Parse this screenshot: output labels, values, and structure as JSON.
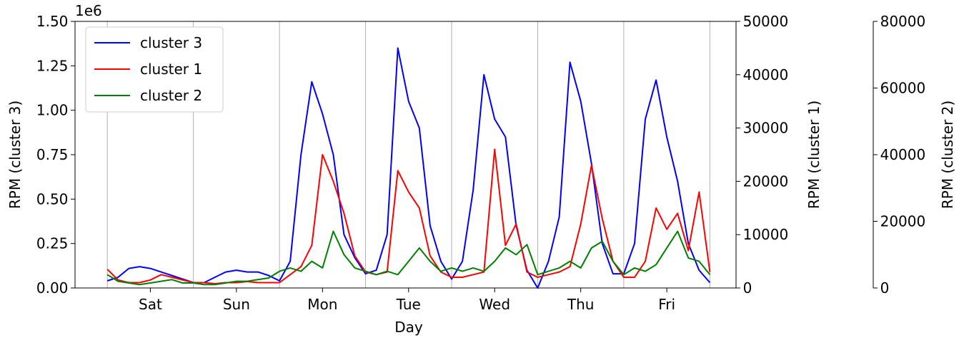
{
  "chart_data": {
    "type": "line",
    "xlabel": "Day",
    "ylabel": "RPM (cluster 3)",
    "y2label": "RPM (cluster 1)",
    "y3label": "RPM (cluster 2)",
    "y_offset_label": "1e6",
    "x": [
      0,
      3,
      6,
      9,
      12,
      15,
      18,
      21,
      24,
      27,
      30,
      33,
      36,
      39,
      42,
      45,
      48,
      51,
      54,
      57,
      60,
      63,
      66,
      69,
      72,
      75,
      78,
      81,
      84,
      87,
      90,
      93,
      96,
      99,
      102,
      105,
      108,
      111,
      114,
      117,
      120,
      123,
      126,
      129,
      132,
      135,
      138,
      141,
      144,
      147,
      150,
      153,
      156,
      159,
      162,
      165,
      168
    ],
    "xlim": [
      -9,
      175.3
    ],
    "xticks": [
      {
        "value": 12,
        "label": "Sat"
      },
      {
        "value": 36,
        "label": "Sun"
      },
      {
        "value": 60,
        "label": "Mon"
      },
      {
        "value": 84,
        "label": "Tue"
      },
      {
        "value": 108,
        "label": "Wed"
      },
      {
        "value": 132,
        "label": "Thu"
      },
      {
        "value": 156,
        "label": "Fri"
      }
    ],
    "xminorticks": [
      0,
      24,
      48,
      72,
      96,
      120,
      144,
      168
    ],
    "grid": "x",
    "ylim": [
      0,
      1.5
    ],
    "yticks": [
      {
        "value": 0,
        "label": "0.00"
      },
      0.25,
      {
        "value": 0.5,
        "label": "0.50"
      },
      0.75,
      {
        "value": 1,
        "label": "1.00"
      },
      1.25,
      {
        "value": 1.5,
        "label": "1.50"
      }
    ],
    "y2lim": [
      0,
      50000
    ],
    "y2ticks": [
      0,
      10000,
      20000,
      30000,
      40000,
      50000
    ],
    "y3lim": [
      0,
      80000
    ],
    "y3ticks": [
      0,
      20000,
      40000,
      60000,
      80000
    ],
    "legend": "upper left",
    "series": [
      {
        "name": "cluster 3",
        "color": "#0000ff",
        "axis": "y",
        "values": [
          0.04,
          0.06,
          0.11,
          0.12,
          0.11,
          0.09,
          0.07,
          0.05,
          0.03,
          0.03,
          0.06,
          0.09,
          0.1,
          0.09,
          0.09,
          0.07,
          0.04,
          0.15,
          0.75,
          1.16,
          0.98,
          0.75,
          0.3,
          0.17,
          0.08,
          0.1,
          0.3,
          1.35,
          1.05,
          0.9,
          0.35,
          0.15,
          0.05,
          0.15,
          0.55,
          1.2,
          0.95,
          0.85,
          0.35,
          0.1,
          0.0,
          0.15,
          0.4,
          1.27,
          1.05,
          0.7,
          0.25,
          0.08,
          0.08,
          0.25,
          0.95,
          1.17,
          0.85,
          0.6,
          0.25,
          0.1,
          0.03
        ]
      },
      {
        "name": "cluster 1",
        "color": "#ff0000",
        "axis": "y2",
        "values": [
          3500,
          1500,
          1000,
          1000,
          1500,
          2500,
          2000,
          1500,
          1000,
          1000,
          800,
          1000,
          1000,
          1200,
          1000,
          1000,
          1000,
          2500,
          4000,
          8000,
          25000,
          20000,
          14000,
          6000,
          3000,
          2500,
          3000,
          22000,
          18000,
          15000,
          6000,
          3000,
          2000,
          2000,
          2500,
          3000,
          26000,
          8000,
          12000,
          3000,
          2000,
          2500,
          3000,
          4000,
          12000,
          23000,
          13000,
          5000,
          2000,
          2000,
          5000,
          15000,
          11000,
          14000,
          7000,
          18000,
          3000
        ]
      },
      {
        "name": "cluster 2",
        "color": "#008000",
        "axis": "y3",
        "values": [
          4000,
          2000,
          1500,
          1000,
          1500,
          2000,
          2500,
          1500,
          1500,
          1000,
          1000,
          1500,
          2000,
          2000,
          2500,
          3000,
          5000,
          6000,
          5000,
          8000,
          6000,
          17000,
          10000,
          6000,
          5000,
          4000,
          5000,
          4000,
          8000,
          12000,
          8000,
          5000,
          6000,
          5000,
          6000,
          5000,
          8000,
          12000,
          10000,
          13000,
          4000,
          5000,
          6000,
          8000,
          6000,
          12000,
          14000,
          8000,
          4000,
          6000,
          5000,
          7000,
          12000,
          17000,
          9000,
          8000,
          4000
        ]
      }
    ]
  }
}
